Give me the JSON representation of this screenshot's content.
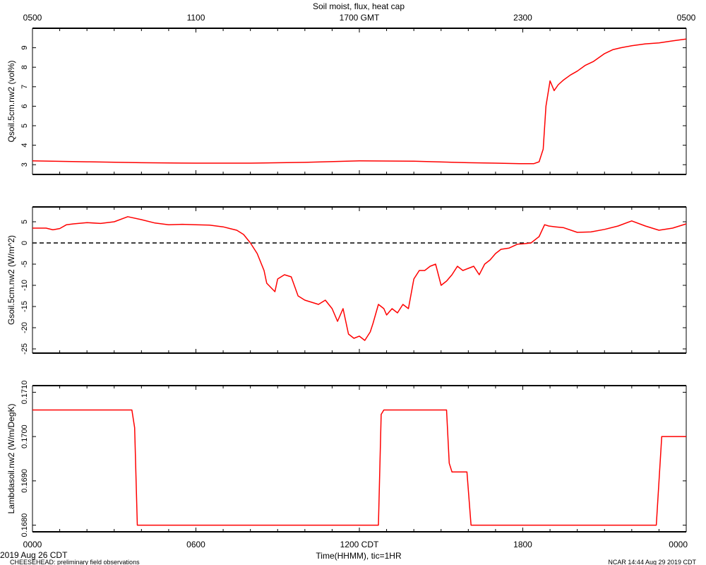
{
  "title": "Soil moist, flux, heat cap",
  "top_axis": {
    "ticks": [
      "0500",
      "1100",
      "1700 GMT",
      "2300",
      "0500"
    ]
  },
  "bottom_axis": {
    "ticks": [
      "0000",
      "0600",
      "1200 CDT",
      "1800",
      "0000"
    ],
    "label": "Time(HHMM), tic=1HR",
    "date": "2019 Aug 26 CDT"
  },
  "footer": {
    "left": "CHEESEHEAD: preliminary field observations",
    "right": "NCAR 14:44 Aug 29 2019 CDT"
  },
  "colors": {
    "series": "#ff0000",
    "axis": "#000000"
  },
  "chart_data": [
    {
      "type": "line",
      "ylabel": "Qsoil.5cm.nw2 (vol%)",
      "ylim": [
        2.5,
        10.0
      ],
      "yticks": [
        "3",
        "4",
        "5",
        "6",
        "7",
        "8",
        "9"
      ],
      "x_hours": [
        0,
        2,
        4,
        6,
        8,
        10,
        12,
        14,
        16,
        17,
        17.9,
        18.4,
        18.6,
        18.75,
        18.85,
        19.0,
        19.15,
        19.3,
        19.5,
        19.75,
        20.0,
        20.3,
        20.6,
        21.0,
        21.3,
        21.6,
        22.0,
        22.5,
        23.0,
        23.5,
        24.0
      ],
      "values": [
        3.2,
        3.15,
        3.1,
        3.08,
        3.08,
        3.12,
        3.2,
        3.18,
        3.1,
        3.08,
        3.05,
        3.05,
        3.15,
        3.8,
        6.0,
        7.3,
        6.8,
        7.1,
        7.35,
        7.6,
        7.8,
        8.1,
        8.3,
        8.7,
        8.9,
        9.0,
        9.1,
        9.2,
        9.25,
        9.35,
        9.45
      ]
    },
    {
      "type": "line",
      "ylabel": "Gsoil.5cm.nw2 (W/m^2)",
      "ylim": [
        -26,
        8.5
      ],
      "yticks": [
        "5",
        "0",
        "-5",
        "-10",
        "-15",
        "-20",
        "-25"
      ],
      "reference_line": 0,
      "x_hours": [
        0,
        0.5,
        0.75,
        1.0,
        1.25,
        1.5,
        2.0,
        2.5,
        3.0,
        3.5,
        4.0,
        4.5,
        5.0,
        5.5,
        6.0,
        6.5,
        7.0,
        7.25,
        7.5,
        7.75,
        8.0,
        8.25,
        8.5,
        8.6,
        8.75,
        8.9,
        9.0,
        9.25,
        9.5,
        9.75,
        10.0,
        10.25,
        10.5,
        10.75,
        11.0,
        11.2,
        11.4,
        11.6,
        11.8,
        12.0,
        12.2,
        12.4,
        12.5,
        12.7,
        12.9,
        13.0,
        13.2,
        13.4,
        13.6,
        13.8,
        14.0,
        14.2,
        14.4,
        14.6,
        14.8,
        15.0,
        15.2,
        15.4,
        15.6,
        15.8,
        16.0,
        16.2,
        16.4,
        16.6,
        16.8,
        17.0,
        17.2,
        17.5,
        17.8,
        18.0,
        18.3,
        18.6,
        18.8,
        18.95,
        19.2,
        19.5,
        20.0,
        20.5,
        21.0,
        21.5,
        22.0,
        22.5,
        23.0,
        23.5,
        24.0
      ],
      "values": [
        3.5,
        3.5,
        3.1,
        3.4,
        4.3,
        4.5,
        4.8,
        4.6,
        5.0,
        6.2,
        5.5,
        4.7,
        4.3,
        4.4,
        4.3,
        4.2,
        3.8,
        3.4,
        3.0,
        2.0,
        0.0,
        -2.5,
        -6.5,
        -9.5,
        -10.5,
        -11.5,
        -8.5,
        -7.5,
        -8.0,
        -12.5,
        -13.5,
        -14.0,
        -14.5,
        -13.5,
        -15.5,
        -18.5,
        -15.5,
        -21.5,
        -22.5,
        -22.0,
        -23.0,
        -21.0,
        -19.0,
        -14.5,
        -15.5,
        -17.0,
        -15.5,
        -16.5,
        -14.5,
        -15.5,
        -8.5,
        -6.5,
        -6.5,
        -5.5,
        -5.0,
        -10.0,
        -9.0,
        -7.5,
        -5.5,
        -6.5,
        -6.0,
        -5.5,
        -7.5,
        -5.0,
        -4.0,
        -2.5,
        -1.5,
        -1.2,
        -0.3,
        -0.2,
        0.0,
        1.5,
        4.3,
        4.0,
        3.8,
        3.6,
        2.5,
        2.6,
        3.2,
        4.0,
        5.2,
        4.0,
        3.0,
        3.5,
        4.5
      ]
    },
    {
      "type": "line",
      "ylabel": "Lambdasoil.nw2 (W/m/DegK)",
      "ylim": [
        0.16785,
        0.17115
      ],
      "yticks": [
        "0.1710",
        "0.1700",
        "0.1690",
        "0.1680"
      ],
      "x_hours": [
        0,
        3.65,
        3.75,
        3.85,
        12.7,
        12.8,
        12.9,
        15.2,
        15.3,
        15.4,
        15.95,
        16.1,
        22.9,
        23.1,
        24.0
      ],
      "values": [
        0.1706,
        0.1706,
        0.1702,
        0.168,
        0.168,
        0.1705,
        0.1706,
        0.1706,
        0.1694,
        0.1692,
        0.1692,
        0.168,
        0.168,
        0.17,
        0.17
      ]
    }
  ]
}
